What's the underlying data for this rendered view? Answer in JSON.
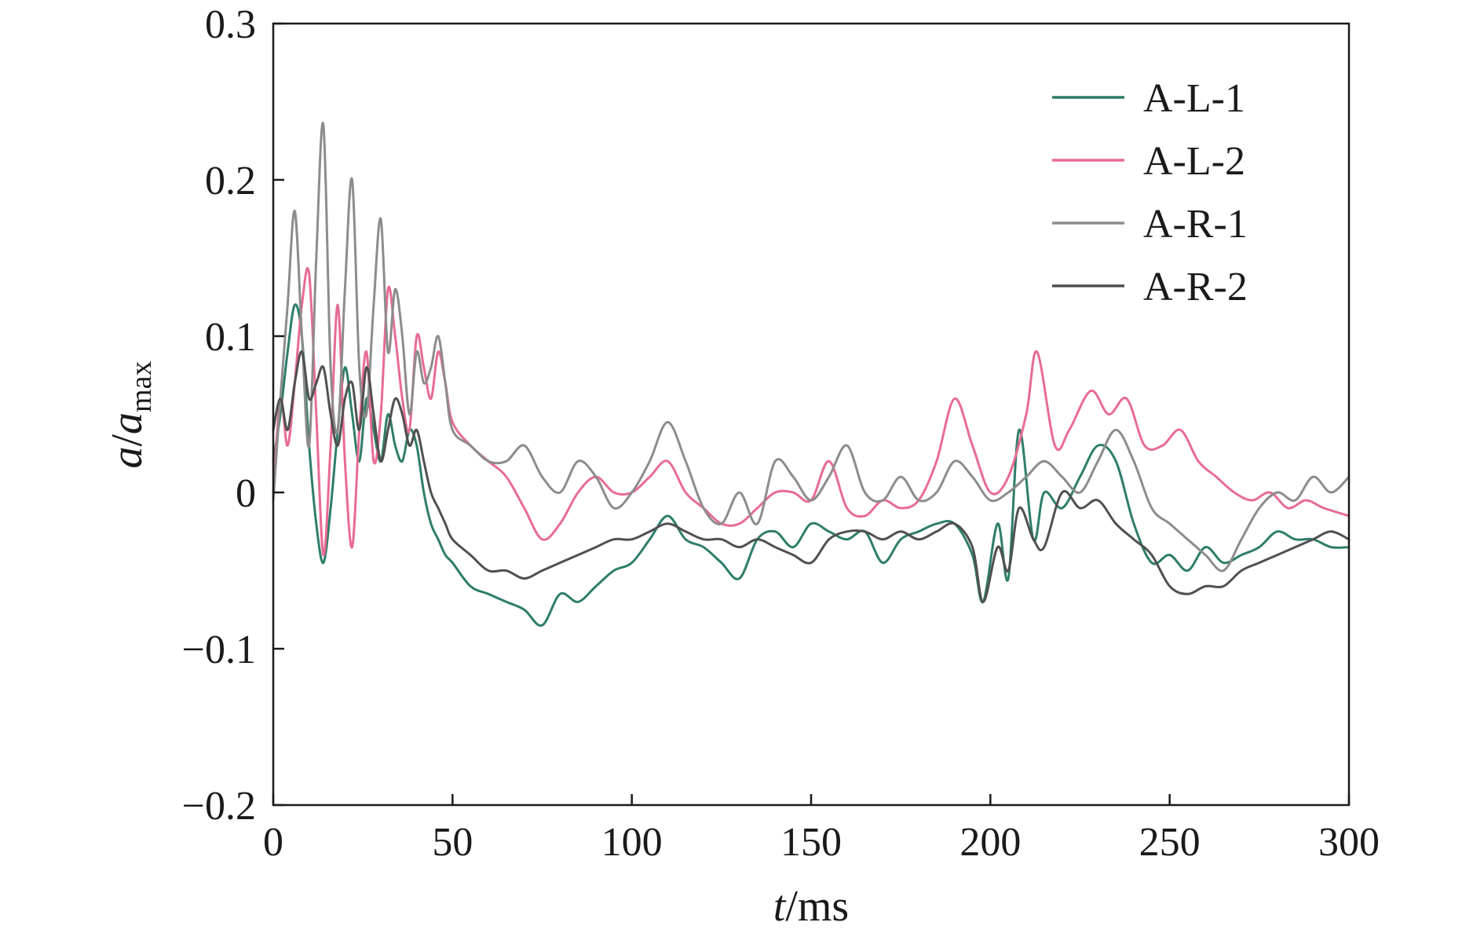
{
  "chart_data": {
    "type": "line",
    "title": "",
    "xlabel": {
      "var": "t",
      "unit": "/ms"
    },
    "ylabel": {
      "var": "a",
      "sep": "/",
      "var2": "a",
      "sub": "max"
    },
    "xlim": [
      0,
      300
    ],
    "ylim": [
      -0.2,
      0.3
    ],
    "xticks": [
      0,
      50,
      100,
      150,
      200,
      250,
      300
    ],
    "yticks": [
      -0.2,
      -0.1,
      0,
      0.1,
      0.2,
      0.3
    ],
    "xtick_labels": [
      "0",
      "50",
      "100",
      "150",
      "200",
      "250",
      "300"
    ],
    "ytick_labels": [
      "−0.2",
      "−0.1",
      "0",
      "0.1",
      "0.2",
      "0.3"
    ],
    "grid": false,
    "legend_position": "top-right",
    "series": [
      {
        "name": "A-L-1",
        "color": "#2e7d6a",
        "x": [
          0,
          2,
          4,
          6,
          8,
          10,
          12,
          14,
          16,
          18,
          20,
          22,
          24,
          26,
          28,
          30,
          32,
          34,
          36,
          38,
          40,
          42,
          44,
          46,
          48,
          50,
          55,
          60,
          65,
          70,
          75,
          80,
          85,
          90,
          95,
          100,
          105,
          110,
          115,
          120,
          125,
          130,
          135,
          140,
          145,
          150,
          155,
          160,
          165,
          170,
          175,
          180,
          185,
          190,
          195,
          198,
          202,
          205,
          208,
          212,
          215,
          220,
          225,
          230,
          235,
          240,
          245,
          250,
          255,
          260,
          265,
          270,
          275,
          280,
          285,
          290,
          295,
          300
        ],
        "y": [
          0.02,
          0.05,
          0.09,
          0.12,
          0.1,
          0.03,
          -0.02,
          -0.045,
          -0.01,
          0.04,
          0.08,
          0.05,
          0.02,
          0.06,
          0.04,
          0.02,
          0.05,
          0.03,
          0.02,
          0.04,
          0.03,
          0.0,
          -0.02,
          -0.03,
          -0.04,
          -0.045,
          -0.06,
          -0.065,
          -0.07,
          -0.075,
          -0.085,
          -0.065,
          -0.07,
          -0.06,
          -0.05,
          -0.045,
          -0.03,
          -0.015,
          -0.03,
          -0.035,
          -0.045,
          -0.055,
          -0.03,
          -0.025,
          -0.035,
          -0.02,
          -0.025,
          -0.03,
          -0.025,
          -0.045,
          -0.03,
          -0.025,
          -0.02,
          -0.02,
          -0.04,
          -0.07,
          -0.02,
          -0.055,
          0.04,
          -0.03,
          0.0,
          -0.01,
          0.01,
          0.03,
          0.02,
          -0.02,
          -0.045,
          -0.04,
          -0.05,
          -0.035,
          -0.045,
          -0.04,
          -0.035,
          -0.025,
          -0.03,
          -0.03,
          -0.035,
          -0.035
        ]
      },
      {
        "name": "A-L-2",
        "color": "#e86b94",
        "x": [
          0,
          2,
          4,
          6,
          8,
          10,
          12,
          14,
          16,
          18,
          20,
          22,
          24,
          26,
          28,
          30,
          32,
          34,
          36,
          38,
          40,
          42,
          44,
          46,
          48,
          50,
          55,
          60,
          65,
          70,
          75,
          80,
          85,
          90,
          95,
          100,
          105,
          110,
          115,
          120,
          125,
          130,
          135,
          140,
          145,
          150,
          155,
          160,
          165,
          170,
          175,
          180,
          185,
          190,
          195,
          200,
          205,
          210,
          213,
          218,
          222,
          228,
          233,
          238,
          243,
          248,
          253,
          258,
          263,
          268,
          273,
          278,
          283,
          288,
          293,
          300
        ],
        "y": [
          0.0,
          0.06,
          0.03,
          0.07,
          0.12,
          0.14,
          0.05,
          -0.04,
          0.03,
          0.12,
          0.02,
          -0.035,
          0.04,
          0.09,
          0.02,
          0.05,
          0.13,
          0.1,
          0.06,
          0.04,
          0.1,
          0.08,
          0.06,
          0.09,
          0.07,
          0.045,
          0.03,
          0.02,
          0.01,
          -0.01,
          -0.03,
          -0.02,
          0.0,
          0.01,
          0.0,
          0.0,
          0.01,
          0.02,
          0.0,
          -0.01,
          -0.02,
          -0.02,
          -0.01,
          0.0,
          0.0,
          -0.005,
          0.02,
          -0.01,
          -0.015,
          -0.005,
          -0.01,
          -0.005,
          0.02,
          0.06,
          0.03,
          0.0,
          0.01,
          0.05,
          0.09,
          0.03,
          0.04,
          0.065,
          0.05,
          0.06,
          0.03,
          0.03,
          0.04,
          0.02,
          0.01,
          0.0,
          -0.005,
          0.0,
          -0.01,
          -0.005,
          -0.01,
          -0.015
        ]
      },
      {
        "name": "A-R-1",
        "color": "#8c8c8c",
        "x": [
          0,
          2,
          4,
          6,
          8,
          10,
          12,
          14,
          16,
          18,
          20,
          22,
          24,
          26,
          28,
          30,
          32,
          34,
          36,
          38,
          40,
          42,
          44,
          46,
          48,
          50,
          55,
          60,
          65,
          70,
          75,
          80,
          85,
          90,
          95,
          100,
          105,
          110,
          115,
          120,
          125,
          130,
          135,
          140,
          145,
          150,
          155,
          160,
          165,
          170,
          175,
          180,
          185,
          190,
          195,
          200,
          205,
          210,
          215,
          220,
          225,
          230,
          235,
          240,
          245,
          250,
          255,
          260,
          265,
          270,
          275,
          280,
          285,
          290,
          295,
          300
        ],
        "y": [
          -0.005,
          0.06,
          0.12,
          0.18,
          0.1,
          0.03,
          0.15,
          0.235,
          0.08,
          0.04,
          0.13,
          0.2,
          0.08,
          0.05,
          0.12,
          0.175,
          0.09,
          0.13,
          0.1,
          0.05,
          0.09,
          0.07,
          0.08,
          0.1,
          0.07,
          0.04,
          0.03,
          0.02,
          0.02,
          0.03,
          0.01,
          0.0,
          0.02,
          0.01,
          -0.01,
          0.0,
          0.02,
          0.045,
          0.02,
          -0.01,
          -0.02,
          0.0,
          -0.02,
          0.02,
          0.01,
          -0.005,
          0.01,
          0.03,
          0.0,
          -0.005,
          0.01,
          -0.005,
          0.0,
          0.02,
          0.01,
          -0.005,
          0.0,
          0.01,
          0.02,
          0.01,
          0.0,
          0.02,
          0.04,
          0.02,
          -0.01,
          -0.02,
          -0.03,
          -0.04,
          -0.05,
          -0.03,
          -0.01,
          0.0,
          -0.005,
          0.01,
          0.0,
          0.01
        ]
      },
      {
        "name": "A-R-2",
        "color": "#505050",
        "x": [
          0,
          2,
          4,
          6,
          8,
          10,
          12,
          14,
          16,
          18,
          20,
          22,
          24,
          26,
          28,
          30,
          32,
          34,
          36,
          38,
          40,
          42,
          44,
          46,
          48,
          50,
          55,
          60,
          65,
          70,
          75,
          80,
          85,
          90,
          95,
          100,
          105,
          110,
          115,
          120,
          125,
          130,
          135,
          140,
          145,
          150,
          155,
          160,
          165,
          170,
          175,
          180,
          185,
          190,
          195,
          198,
          202,
          205,
          208,
          212,
          215,
          220,
          225,
          230,
          235,
          240,
          245,
          250,
          255,
          260,
          265,
          270,
          275,
          280,
          285,
          290,
          295,
          300
        ],
        "y": [
          0.04,
          0.06,
          0.04,
          0.07,
          0.09,
          0.06,
          0.07,
          0.08,
          0.05,
          0.03,
          0.06,
          0.07,
          0.04,
          0.08,
          0.05,
          0.02,
          0.04,
          0.06,
          0.05,
          0.03,
          0.04,
          0.02,
          0.0,
          -0.01,
          -0.02,
          -0.03,
          -0.04,
          -0.05,
          -0.05,
          -0.055,
          -0.05,
          -0.045,
          -0.04,
          -0.035,
          -0.03,
          -0.03,
          -0.025,
          -0.02,
          -0.025,
          -0.03,
          -0.03,
          -0.035,
          -0.03,
          -0.035,
          -0.04,
          -0.045,
          -0.03,
          -0.025,
          -0.025,
          -0.03,
          -0.025,
          -0.03,
          -0.025,
          -0.02,
          -0.035,
          -0.07,
          -0.035,
          -0.05,
          -0.01,
          -0.03,
          -0.035,
          0.0,
          -0.01,
          -0.005,
          -0.02,
          -0.03,
          -0.04,
          -0.06,
          -0.065,
          -0.06,
          -0.06,
          -0.05,
          -0.045,
          -0.04,
          -0.035,
          -0.03,
          -0.025,
          -0.03
        ]
      }
    ]
  }
}
